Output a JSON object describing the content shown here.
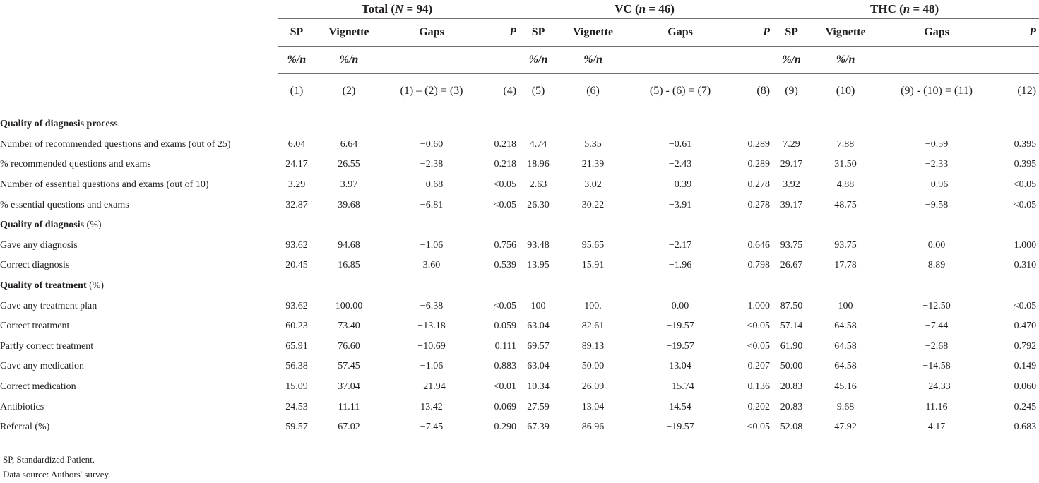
{
  "groups": [
    {
      "name": "Total",
      "n_label": "N",
      "n_value": "94"
    },
    {
      "name": "VC",
      "n_label": "n",
      "n_value": "46"
    },
    {
      "name": "THC",
      "n_label": "n",
      "n_value": "48"
    }
  ],
  "subheaders": {
    "sp": "SP",
    "vignette": "Vignette",
    "gaps": "Gaps",
    "p": "P",
    "unit": "%/n"
  },
  "column_numbers": [
    "(1)",
    "(2)",
    "(1) – (2) = (3)",
    "(4)",
    "(5)",
    "(6)",
    "(5) - (6) = (7)",
    "(8)",
    "(9)",
    "(10)",
    "(9) - (10) = (11)",
    "(12)"
  ],
  "sections": [
    {
      "title": "Quality of diagnosis process",
      "title_suffix": "",
      "rows": [
        {
          "label": "Number of recommended questions and exams (out of 25)",
          "values": [
            "6.04",
            "6.64",
            "−0.60",
            "0.218",
            "4.74",
            "5.35",
            "−0.61",
            "0.289",
            "7.29",
            "7.88",
            "−0.59",
            "0.395"
          ]
        },
        {
          "label": "% recommended questions and exams",
          "values": [
            "24.17",
            "26.55",
            "−2.38",
            "0.218",
            "18.96",
            "21.39",
            "−2.43",
            "0.289",
            "29.17",
            "31.50",
            "−2.33",
            "0.395"
          ]
        },
        {
          "label": "Number of essential questions and exams (out of 10)",
          "values": [
            "3.29",
            "3.97",
            "−0.68",
            "<0.05",
            "2.63",
            "3.02",
            "−0.39",
            "0.278",
            "3.92",
            "4.88",
            "−0.96",
            "<0.05"
          ]
        },
        {
          "label": "% essential questions and exams",
          "values": [
            "32.87",
            "39.68",
            "−6.81",
            "<0.05",
            "26.30",
            "30.22",
            "−3.91",
            "0.278",
            "39.17",
            "48.75",
            "−9.58",
            "<0.05"
          ]
        }
      ]
    },
    {
      "title": "Quality of diagnosis",
      "title_suffix": " (%)",
      "rows": [
        {
          "label": "Gave any diagnosis",
          "values": [
            "93.62",
            "94.68",
            "−1.06",
            "0.756",
            "93.48",
            "95.65",
            "−2.17",
            "0.646",
            "93.75",
            "93.75",
            "0.00",
            "1.000"
          ]
        },
        {
          "label": "Correct diagnosis",
          "values": [
            "20.45",
            "16.85",
            "3.60",
            "0.539",
            "13.95",
            "15.91",
            "−1.96",
            "0.798",
            "26.67",
            "17.78",
            "8.89",
            "0.310"
          ]
        }
      ]
    },
    {
      "title": "Quality of treatment",
      "title_suffix": " (%)",
      "rows": [
        {
          "label": "Gave any treatment plan",
          "values": [
            "93.62",
            "100.00",
            "−6.38",
            "<0.05",
            "100",
            "100.",
            "0.00",
            "1.000",
            "87.50",
            "100",
            "−12.50",
            "<0.05"
          ]
        },
        {
          "label": "Correct treatment",
          "values": [
            "60.23",
            "73.40",
            "−13.18",
            "0.059",
            "63.04",
            "82.61",
            "−19.57",
            "<0.05",
            "57.14",
            "64.58",
            "−7.44",
            "0.470"
          ]
        },
        {
          "label": "Partly correct treatment",
          "values": [
            "65.91",
            "76.60",
            "−10.69",
            "0.111",
            "69.57",
            "89.13",
            "−19.57",
            "<0.05",
            "61.90",
            "64.58",
            "−2.68",
            "0.792"
          ]
        },
        {
          "label": "Gave any medication",
          "values": [
            "56.38",
            "57.45",
            "−1.06",
            "0.883",
            "63.04",
            "50.00",
            "13.04",
            "0.207",
            "50.00",
            "64.58",
            "−14.58",
            "0.149"
          ]
        },
        {
          "label": "Correct medication",
          "values": [
            "15.09",
            "37.04",
            "−21.94",
            "<0.01",
            "10.34",
            "26.09",
            "−15.74",
            "0.136",
            "20.83",
            "45.16",
            "−24.33",
            "0.060"
          ]
        },
        {
          "label": "Antibiotics",
          "values": [
            "24.53",
            "11.11",
            "13.42",
            "0.069",
            "27.59",
            "13.04",
            "14.54",
            "0.202",
            "20.83",
            "9.68",
            "11.16",
            "0.245"
          ]
        },
        {
          "label": "Referral (%)",
          "values": [
            "59.57",
            "67.02",
            "−7.45",
            "0.290",
            "67.39",
            "86.96",
            "−19.57",
            "<0.05",
            "52.08",
            "47.92",
            "4.17",
            "0.683"
          ]
        }
      ]
    }
  ],
  "footnotes": [
    "SP, Standardized Patient.",
    "Data source: Authors' survey."
  ]
}
